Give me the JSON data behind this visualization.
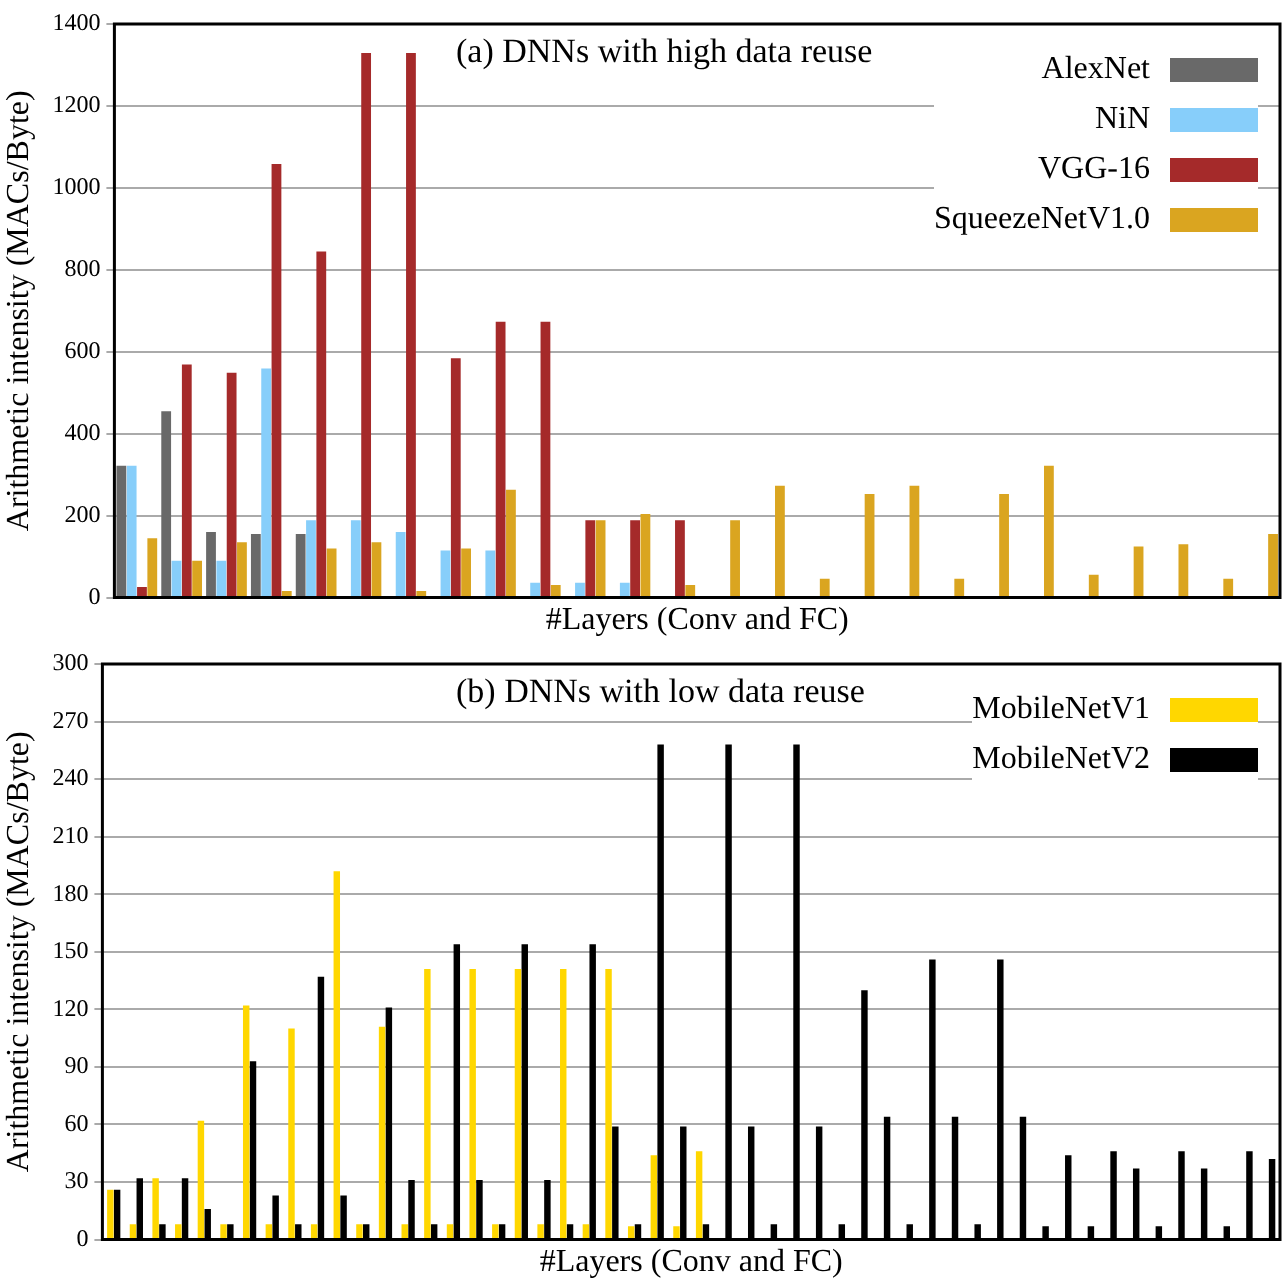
{
  "chart_data": [
    {
      "type": "bar",
      "title": "(a) DNNs with high data reuse",
      "xlabel": "#Layers (Conv and FC)",
      "ylabel": "Arithmetic intensity (MACs/Byte)",
      "categories": [
        null,
        null,
        null,
        null,
        null,
        null,
        null,
        null,
        null,
        null,
        null,
        null,
        null,
        null,
        null,
        null,
        null,
        null,
        null,
        null,
        null,
        null,
        null,
        null,
        null,
        null
      ],
      "series": [
        {
          "name": "AlexNet",
          "color": "#696969",
          "values": [
            322,
            455,
            160,
            155,
            155,
            null,
            null,
            null,
            null,
            null,
            null,
            null,
            null,
            null,
            null,
            null,
            null,
            null,
            null,
            null,
            null,
            null,
            null,
            null,
            null,
            null
          ]
        },
        {
          "name": "NiN",
          "color": "#87cefa",
          "values": [
            322,
            90,
            90,
            559,
            189,
            189,
            160,
            115,
            115,
            36,
            36,
            36,
            null,
            null,
            null,
            null,
            null,
            null,
            null,
            null,
            null,
            null,
            null,
            null,
            null,
            null
          ]
        },
        {
          "name": "VGG-16",
          "color": "#a52a2a",
          "values": [
            26,
            569,
            549,
            1058,
            845,
            1329,
            1329,
            584,
            673,
            673,
            189,
            189,
            189,
            null,
            null,
            null,
            null,
            null,
            null,
            null,
            null,
            null,
            null,
            null,
            null,
            null
          ]
        },
        {
          "name": "SqueezeNetV1.0",
          "color": "#daa520",
          "values": [
            145,
            90,
            135,
            16,
            120,
            135,
            16,
            120,
            263,
            31,
            189,
            204,
            31,
            189,
            273,
            46,
            253,
            273,
            46,
            253,
            322,
            56,
            125,
            130,
            46,
            155
          ]
        }
      ],
      "ylim": [
        0,
        1400
      ],
      "yticks": [
        0,
        200,
        400,
        600,
        800,
        1000,
        1200,
        1400
      ],
      "grid": "y",
      "legend": "top right",
      "tick_labels": "y"
    },
    {
      "type": "bar",
      "title": "(b) DNNs with low data reuse",
      "xlabel": "#Layers (Conv and FC)",
      "ylabel": "Arithmetic intensity (MACs/Byte)",
      "categories": [
        null,
        null,
        null,
        null,
        null,
        null,
        null,
        null,
        null,
        null,
        null,
        null,
        null,
        null,
        null,
        null,
        null,
        null,
        null,
        null,
        null,
        null,
        null,
        null,
        null,
        null,
        null,
        null,
        null,
        null,
        null,
        null,
        null,
        null,
        null,
        null,
        null,
        null,
        null,
        null,
        null,
        null,
        null,
        null,
        null,
        null,
        null,
        null,
        null,
        null,
        null,
        null
      ],
      "series": [
        {
          "name": "MobileNetV1",
          "color": "#ffd700",
          "values": [
            26,
            8,
            32,
            8,
            62,
            8,
            122,
            8,
            110,
            8,
            192,
            8,
            111,
            8,
            141,
            8,
            141,
            8,
            141,
            8,
            141,
            8,
            141,
            7,
            44,
            7,
            46,
            null,
            null,
            null,
            null,
            null,
            null,
            null,
            null,
            null,
            null,
            null,
            null,
            null,
            null,
            null,
            null,
            null,
            null,
            null,
            null,
            null,
            null,
            null,
            null,
            null
          ]
        },
        {
          "name": "MobileNetV2",
          "color": "#000000",
          "values": [
            26,
            32,
            8,
            32,
            16,
            8,
            93,
            23,
            8,
            137,
            23,
            8,
            121,
            31,
            8,
            154,
            31,
            8,
            154,
            31,
            8,
            154,
            59,
            8,
            258,
            59,
            8,
            258,
            59,
            8,
            258,
            59,
            8,
            130,
            64,
            8,
            146,
            64,
            8,
            146,
            64,
            7,
            44,
            7,
            46,
            37,
            7,
            46,
            37,
            7,
            46,
            42
          ]
        }
      ],
      "ylim": [
        0,
        300
      ],
      "yticks": [
        0,
        30,
        60,
        90,
        120,
        150,
        180,
        210,
        240,
        270,
        300
      ],
      "grid": "y",
      "legend": "top right",
      "tick_labels": "y"
    }
  ]
}
